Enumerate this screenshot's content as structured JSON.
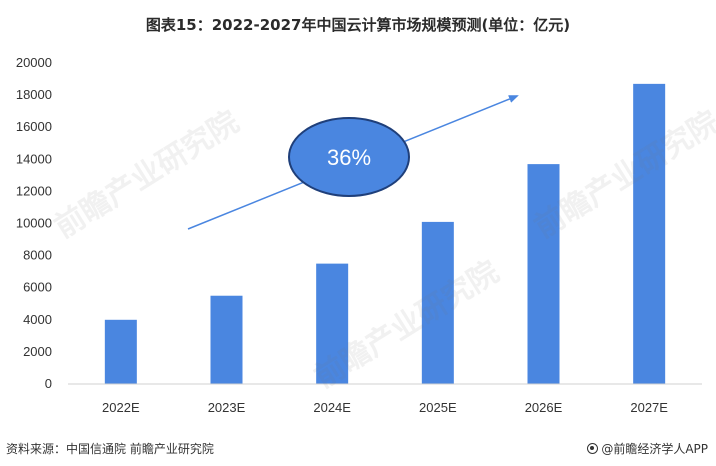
{
  "title": "图表15：2022-2027年中国云计算市场规模预测(单位：亿元)",
  "source": "资料来源：中国信通院 前瞻产业研究院",
  "brand": "@前瞻经济学人APP",
  "watermark_text": "前瞻产业研究院",
  "colors": {
    "bar": "#4a86e0",
    "ellipse_fill": "#4a86e0",
    "ellipse_stroke": "#1f3f7a",
    "arrow": "#4a86e0"
  },
  "chart_data": {
    "type": "bar",
    "categories": [
      "2022E",
      "2023E",
      "2024E",
      "2025E",
      "2026E",
      "2027E"
    ],
    "values": [
      4000,
      5500,
      7500,
      10100,
      13700,
      18700
    ],
    "ylim": [
      0,
      20000
    ],
    "yticks": [
      0,
      2000,
      4000,
      6000,
      8000,
      10000,
      12000,
      14000,
      16000,
      18000,
      20000
    ],
    "xlabel": "",
    "ylabel": "",
    "grid": false,
    "annotation": {
      "text": "36%",
      "shape": "ellipse-with-arrow"
    }
  }
}
